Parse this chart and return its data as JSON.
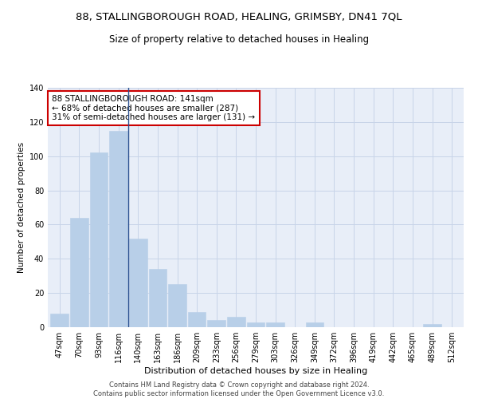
{
  "title1": "88, STALLINGBOROUGH ROAD, HEALING, GRIMSBY, DN41 7QL",
  "title2": "Size of property relative to detached houses in Healing",
  "xlabel": "Distribution of detached houses by size in Healing",
  "ylabel": "Number of detached properties",
  "categories": [
    "47sqm",
    "70sqm",
    "93sqm",
    "116sqm",
    "140sqm",
    "163sqm",
    "186sqm",
    "209sqm",
    "233sqm",
    "256sqm",
    "279sqm",
    "303sqm",
    "326sqm",
    "349sqm",
    "372sqm",
    "396sqm",
    "419sqm",
    "442sqm",
    "465sqm",
    "489sqm",
    "512sqm"
  ],
  "values": [
    8,
    64,
    102,
    115,
    52,
    34,
    25,
    9,
    4,
    6,
    3,
    3,
    0,
    3,
    0,
    0,
    0,
    0,
    0,
    2,
    0
  ],
  "bar_color": "#b8cfe8",
  "bar_edge_color": "#b8cfe8",
  "highlight_line_color": "#2a5090",
  "annotation_text": "88 STALLINGBOROUGH ROAD: 141sqm\n← 68% of detached houses are smaller (287)\n31% of semi-detached houses are larger (131) →",
  "annotation_box_color": "white",
  "annotation_box_edge": "#cc0000",
  "ylim": [
    0,
    140
  ],
  "yticks": [
    0,
    20,
    40,
    60,
    80,
    100,
    120,
    140
  ],
  "grid_color": "#c8d4e8",
  "background_color": "#e8eef8",
  "footer1": "Contains HM Land Registry data © Crown copyright and database right 2024.",
  "footer2": "Contains public sector information licensed under the Open Government Licence v3.0.",
  "title1_fontsize": 9.5,
  "title2_fontsize": 8.5,
  "xlabel_fontsize": 8,
  "ylabel_fontsize": 7.5,
  "tick_fontsize": 7,
  "annotation_fontsize": 7.5,
  "footer_fontsize": 6
}
